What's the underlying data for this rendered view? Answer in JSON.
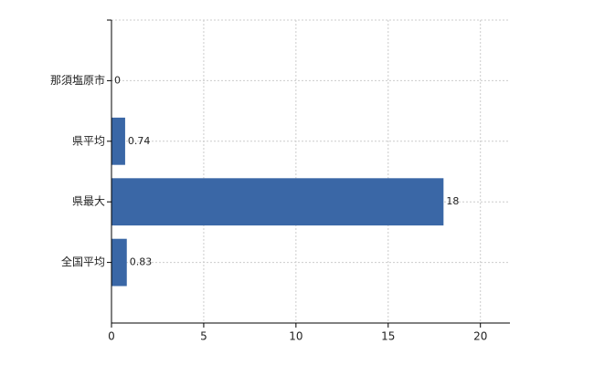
{
  "chart_data": {
    "type": "hbar",
    "categories": [
      "那須塩原市",
      "県平均",
      "県最大",
      "全国平均"
    ],
    "values": [
      0,
      0.74,
      18,
      0.83
    ],
    "color": "#3a67a6",
    "xlim": [
      0,
      21.6
    ],
    "xticks": [
      0,
      5,
      10,
      15,
      20
    ],
    "grid": true
  }
}
